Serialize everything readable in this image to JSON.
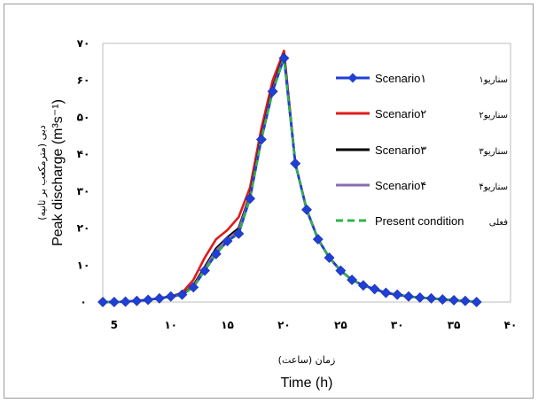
{
  "chart_data": {
    "type": "line",
    "xlim": [
      4,
      40
    ],
    "ylim": [
      0,
      70
    ],
    "x_ticks": [
      "5",
      "۱۰",
      "۱۵",
      "۲۰",
      "۲۵",
      "۳۰",
      "۳۵",
      "۴۰"
    ],
    "y_ticks": [
      "۰",
      "۱۰",
      "۲۰",
      "۳۰",
      "۴۰",
      "۵۰",
      "۶۰",
      "۷۰"
    ],
    "xlabel_fa": "زمان (ساعت)",
    "xlabel": "Time (h)",
    "ylabel_fa": "دبی (مترمکعب بر ثانیه)",
    "ylabel": "Peak discharge (m³s⁻¹)",
    "legend_position": "right",
    "series": [
      {
        "name": "Scenario۱",
        "name_fa": "سناریو۱",
        "color": "#1f3fd6",
        "style": "solid-diamond",
        "x": [
          4,
          5,
          6,
          7,
          8,
          9,
          10,
          11,
          12,
          13,
          14,
          15,
          16,
          17,
          18,
          19,
          20,
          21,
          22,
          23,
          24,
          25,
          26,
          27,
          28,
          29,
          30,
          31,
          32,
          33,
          34,
          35,
          36,
          37
        ],
        "y": [
          0,
          0,
          0.1,
          0.3,
          0.6,
          1,
          1.5,
          2,
          4,
          8.5,
          13,
          16.5,
          18.5,
          28,
          44,
          57,
          66,
          37.5,
          25,
          17,
          12,
          8.5,
          6,
          4.5,
          3.5,
          2.5,
          2,
          1.5,
          1.2,
          1,
          0.7,
          0.5,
          0.3,
          0
        ]
      },
      {
        "name": "Scenario۲",
        "name_fa": "سناریو۲",
        "color": "#e01b1b",
        "style": "solid",
        "x": [
          4,
          5,
          6,
          7,
          8,
          9,
          10,
          11,
          12,
          13,
          14,
          15,
          16,
          17,
          18,
          19,
          20,
          21,
          22,
          23,
          24,
          25,
          26,
          27,
          28,
          29,
          30,
          31,
          32,
          33,
          34,
          35,
          36,
          37
        ],
        "y": [
          0,
          0,
          0.1,
          0.3,
          0.6,
          1,
          1.5,
          2.5,
          6,
          12,
          17,
          19.5,
          23,
          31,
          47,
          60,
          68,
          37.5,
          25,
          17,
          12,
          8.5,
          6,
          4.5,
          3.5,
          2.5,
          2,
          1.5,
          1.2,
          1,
          0.7,
          0.5,
          0.3,
          0
        ]
      },
      {
        "name": "Scenario۳",
        "name_fa": "سناریو۳",
        "color": "#000000",
        "style": "solid",
        "x": [
          4,
          5,
          6,
          7,
          8,
          9,
          10,
          11,
          12,
          13,
          14,
          15,
          16,
          17,
          18,
          19,
          20,
          21,
          22,
          23,
          24,
          25,
          26,
          27,
          28,
          29,
          30,
          31,
          32,
          33,
          34,
          35,
          36,
          37
        ],
        "y": [
          0,
          0,
          0.1,
          0.3,
          0.6,
          1,
          1.5,
          2,
          4.5,
          9.5,
          14.5,
          17.5,
          20,
          29,
          45,
          58,
          67,
          37.5,
          25,
          17,
          12,
          8.5,
          6,
          4.5,
          3.5,
          2.5,
          2,
          1.5,
          1.2,
          1,
          0.7,
          0.5,
          0.3,
          0
        ]
      },
      {
        "name": "Scenario۴",
        "name_fa": "سناریو۴",
        "color": "#8a6bb0",
        "style": "solid",
        "x": [
          4,
          5,
          6,
          7,
          8,
          9,
          10,
          11,
          12,
          13,
          14,
          15,
          16,
          17,
          18,
          19,
          20,
          21,
          22,
          23,
          24,
          25,
          26,
          27,
          28,
          29,
          30,
          31,
          32,
          33,
          34,
          35,
          36,
          37
        ],
        "y": [
          0,
          0,
          0.1,
          0.3,
          0.6,
          1,
          1.5,
          2,
          4.2,
          9,
          14,
          17,
          19.5,
          28.5,
          44.5,
          57.5,
          66.5,
          37.5,
          25,
          17,
          12,
          8.5,
          6,
          4.5,
          3.5,
          2.5,
          2,
          1.5,
          1.2,
          1,
          0.7,
          0.5,
          0.3,
          0
        ]
      },
      {
        "name": "Present condition",
        "name_fa": "فعلی",
        "color": "#2db34a",
        "style": "dashed",
        "x": [
          4,
          5,
          6,
          7,
          8,
          9,
          10,
          11,
          12,
          13,
          14,
          15,
          16,
          17,
          18,
          19,
          20,
          21,
          22,
          23,
          24,
          25,
          26,
          27,
          28,
          29,
          30,
          31,
          32,
          33,
          34,
          35,
          36,
          37
        ],
        "y": [
          0,
          0,
          0.1,
          0.3,
          0.6,
          1,
          1.5,
          2,
          4,
          8.5,
          13,
          16.5,
          18.5,
          28,
          44,
          57,
          66,
          37.5,
          25,
          17,
          12,
          8.5,
          6,
          4.5,
          3.5,
          2.5,
          2,
          1.5,
          1.2,
          1,
          0.7,
          0.5,
          0.3,
          0
        ]
      }
    ]
  }
}
